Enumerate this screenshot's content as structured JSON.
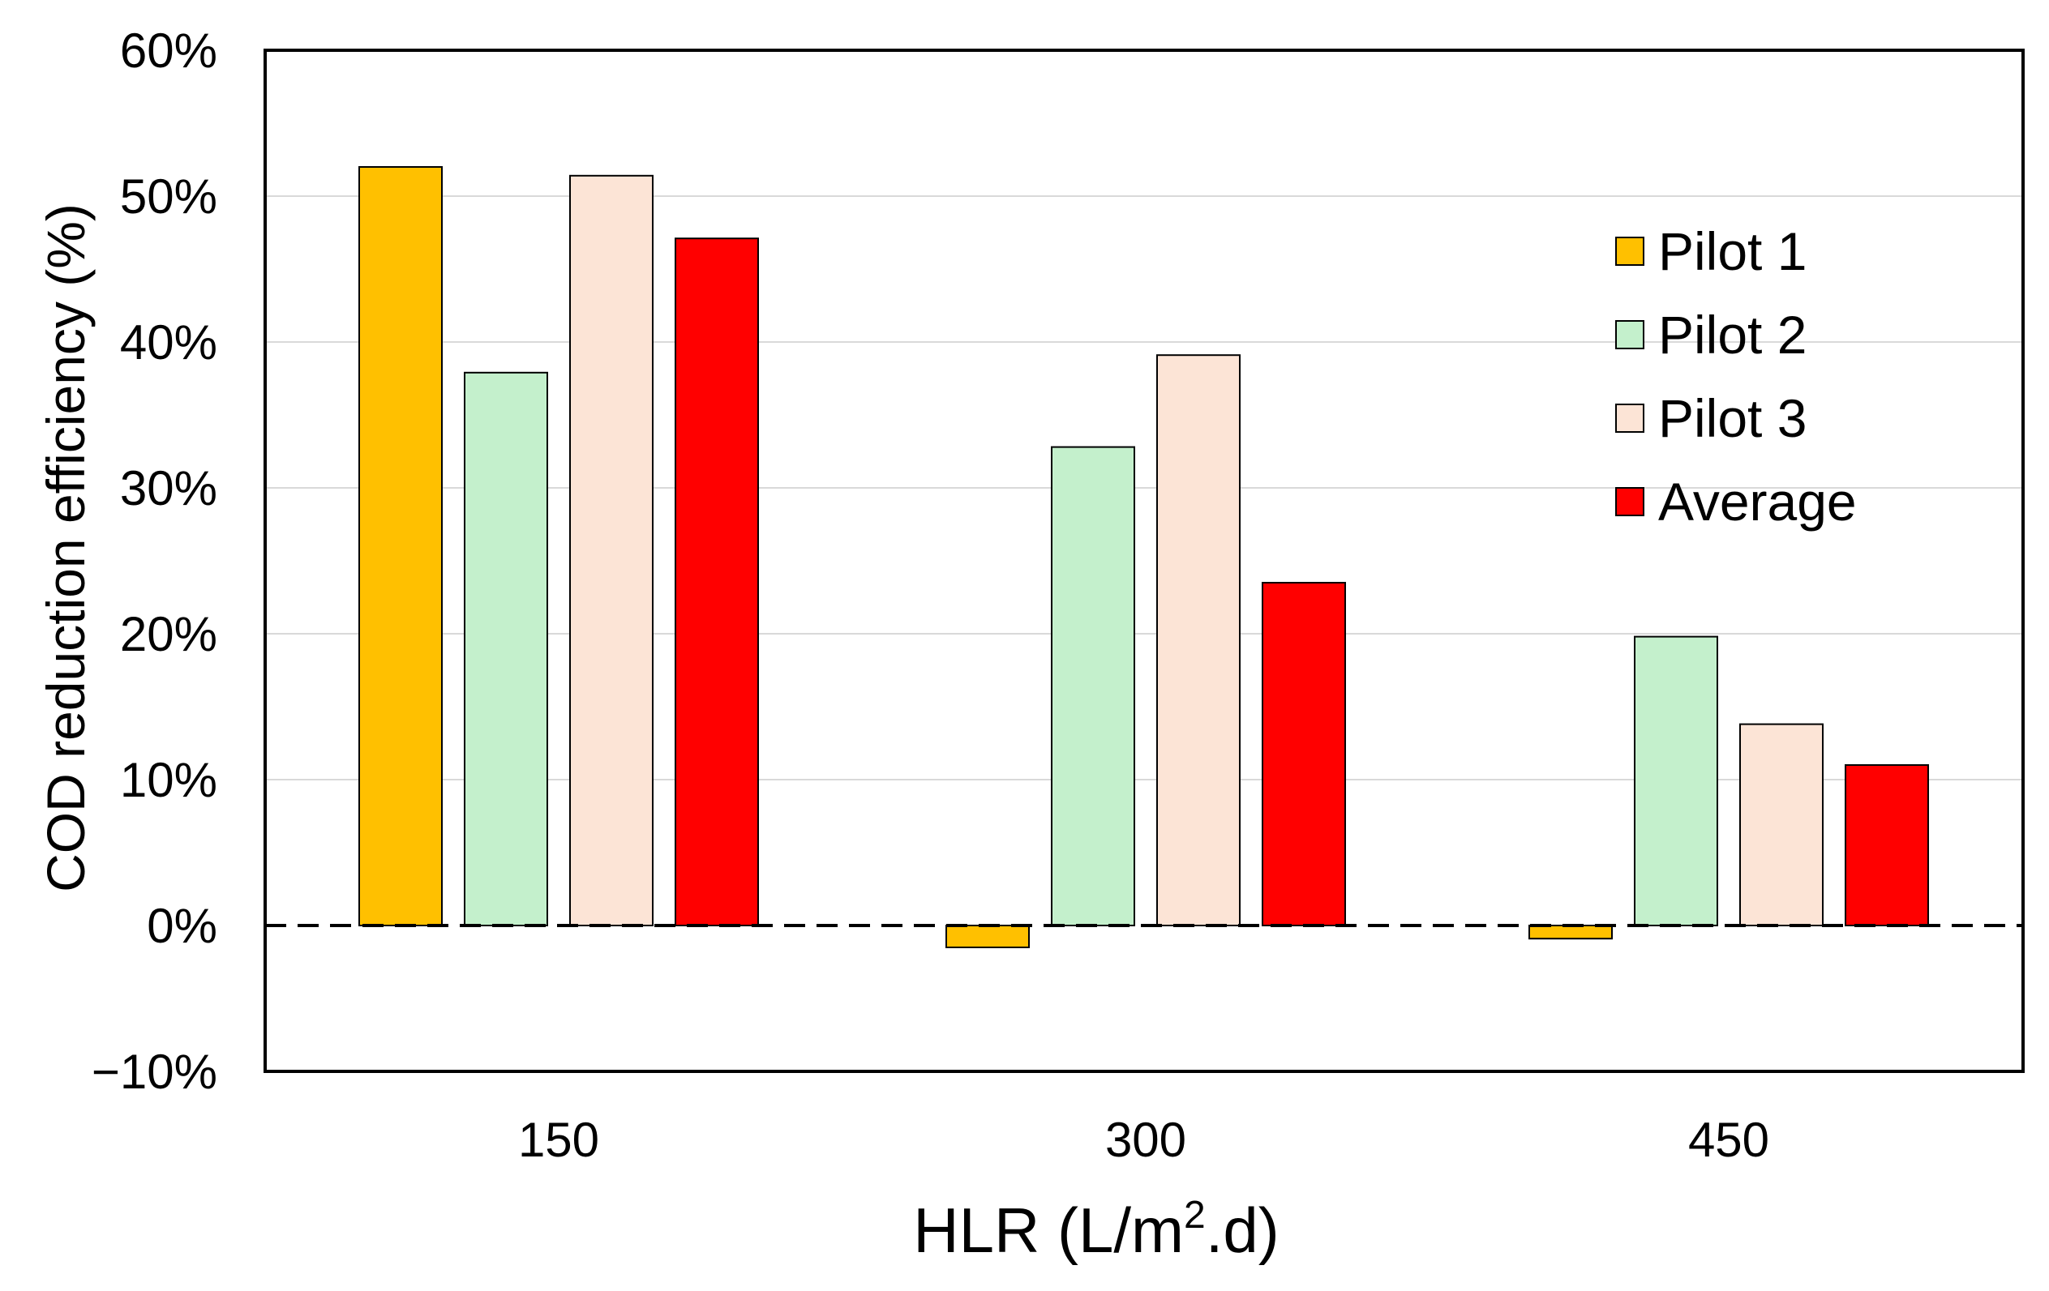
{
  "chart_data": {
    "type": "bar",
    "title": "",
    "xlabel_main": "HLR (L/m",
    "xlabel_sup": "2",
    "xlabel_tail": ".d)",
    "ylabel": "COD reduction efficiency (%)",
    "categories": [
      "150",
      "300",
      "450"
    ],
    "ylim": [
      -10,
      60
    ],
    "yticks": [
      -10,
      0,
      10,
      20,
      30,
      40,
      50,
      60
    ],
    "ytick_labels": [
      "−10%",
      "0%",
      "10%",
      "20%",
      "30%",
      "40%",
      "50%",
      "60%"
    ],
    "grid": true,
    "zero_line": "dashed",
    "legend_position": "top-right",
    "series": [
      {
        "name": "Pilot 1",
        "color": "#FFC000",
        "values": [
          52.0,
          -1.5,
          -0.9
        ]
      },
      {
        "name": "Pilot 2",
        "color": "#C4F0CC",
        "values": [
          37.9,
          32.8,
          19.8
        ]
      },
      {
        "name": "Pilot 3",
        "color": "#FCE4D6",
        "values": [
          51.4,
          39.1,
          13.8
        ]
      },
      {
        "name": "Average",
        "color": "#FF0000",
        "values": [
          47.1,
          23.5,
          11.0
        ]
      }
    ]
  }
}
